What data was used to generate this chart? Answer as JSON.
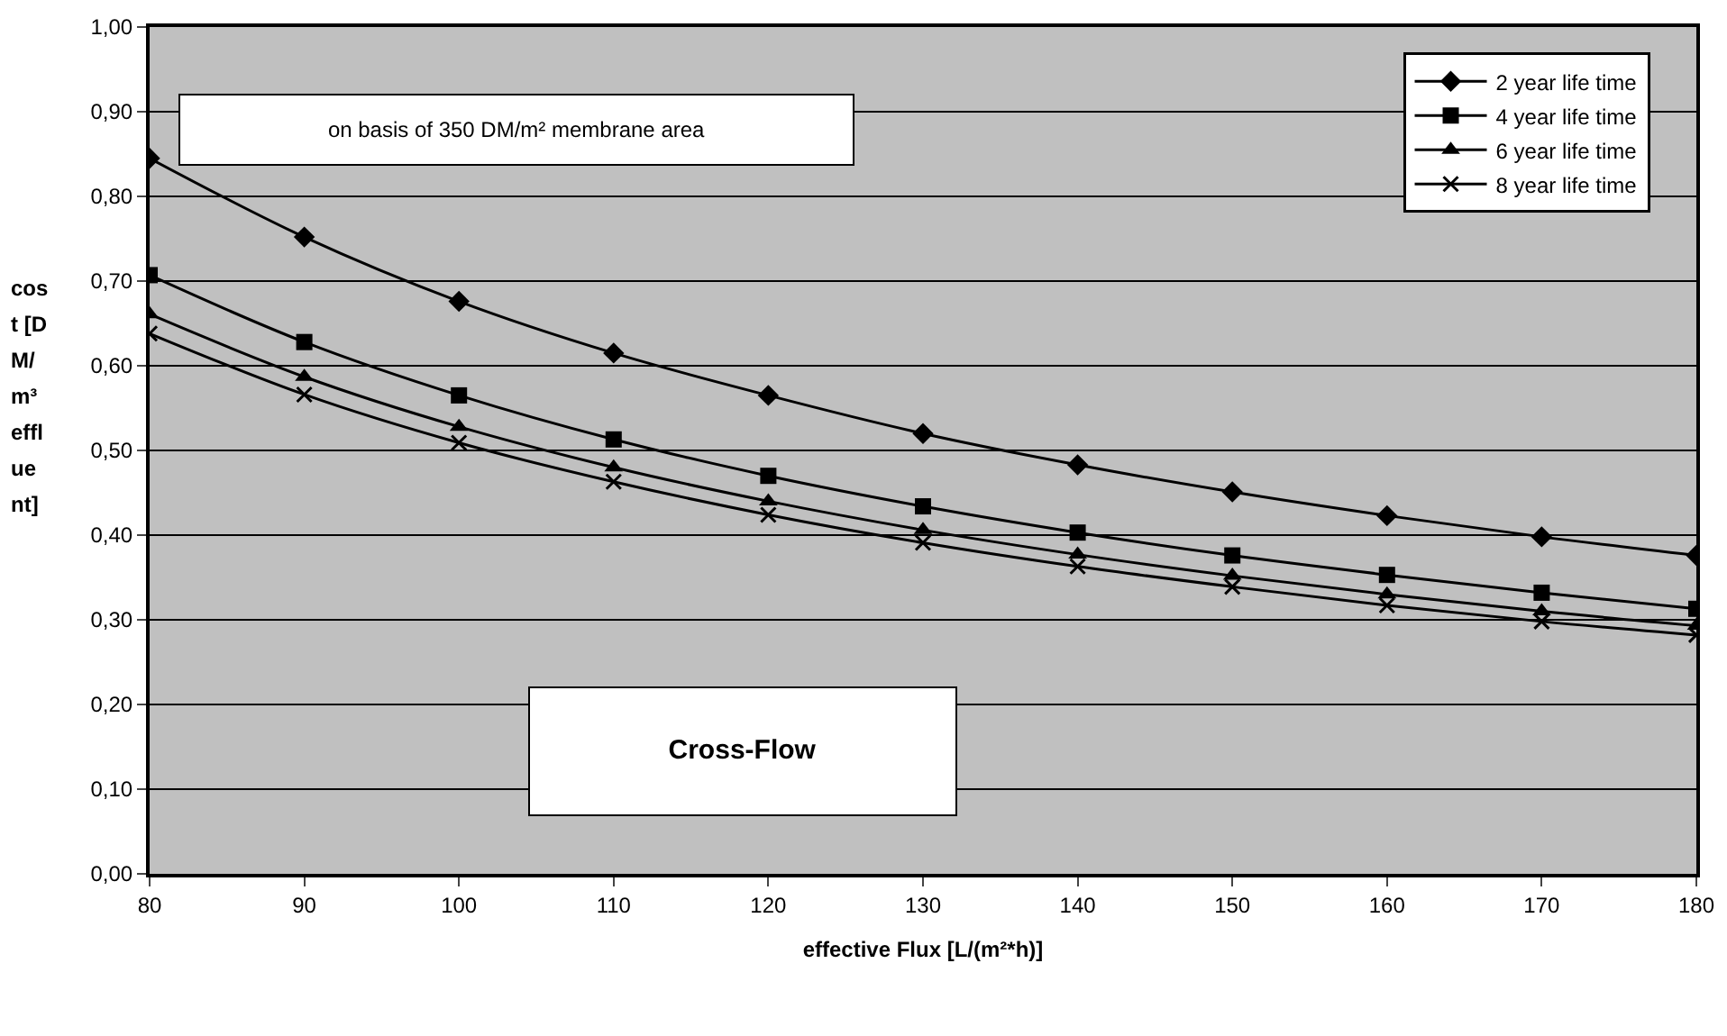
{
  "chart_data": {
    "type": "line",
    "xlabel": "effective Flux [L/(m²*h)]",
    "ylabel": "cost [DM/m³ effluent]",
    "x": [
      80,
      90,
      100,
      110,
      120,
      130,
      140,
      150,
      160,
      170,
      180
    ],
    "series": [
      {
        "name": "2 year life time",
        "color": "#000000",
        "marker": "diamond",
        "values": [
          0.845,
          0.752,
          0.676,
          0.615,
          0.565,
          0.52,
          0.483,
          0.451,
          0.423,
          0.398,
          0.376
        ]
      },
      {
        "name": "4 year life time",
        "color": "#000000",
        "marker": "square",
        "values": [
          0.707,
          0.628,
          0.565,
          0.513,
          0.47,
          0.434,
          0.403,
          0.376,
          0.353,
          0.332,
          0.313
        ]
      },
      {
        "name": "6 year life time",
        "color": "#000000",
        "marker": "triangle",
        "values": [
          0.661,
          0.587,
          0.528,
          0.48,
          0.44,
          0.406,
          0.377,
          0.352,
          0.33,
          0.31,
          0.293
        ]
      },
      {
        "name": "8 year life time",
        "color": "#000000",
        "marker": "cross",
        "values": [
          0.638,
          0.566,
          0.509,
          0.463,
          0.424,
          0.391,
          0.363,
          0.339,
          0.317,
          0.298,
          0.282
        ]
      }
    ],
    "annotations": [
      "on basis of 350 DM/m² membrane area",
      "Cross-Flow"
    ],
    "xlim": [
      80,
      180
    ],
    "xticks": [
      80,
      90,
      100,
      110,
      120,
      130,
      140,
      150,
      160,
      170,
      180
    ],
    "ylim": [
      0,
      1
    ],
    "yticks": [
      {
        "value": 0,
        "label": "0,00"
      },
      {
        "value": 0.1,
        "label": "0,10"
      },
      {
        "value": 0.2,
        "label": "0,20"
      },
      {
        "value": 0.3,
        "label": "0,30"
      },
      {
        "value": 0.4,
        "label": "0,40"
      },
      {
        "value": 0.5,
        "label": "0,50"
      },
      {
        "value": 0.6,
        "label": "0,60"
      },
      {
        "value": 0.7,
        "label": "0,70"
      },
      {
        "value": 0.8,
        "label": "0,80"
      },
      {
        "value": 0.9,
        "label": "0,90"
      },
      {
        "value": 1,
        "label": "1,00"
      }
    ],
    "grid": "y",
    "legend": "top right",
    "line_style": "solid"
  }
}
